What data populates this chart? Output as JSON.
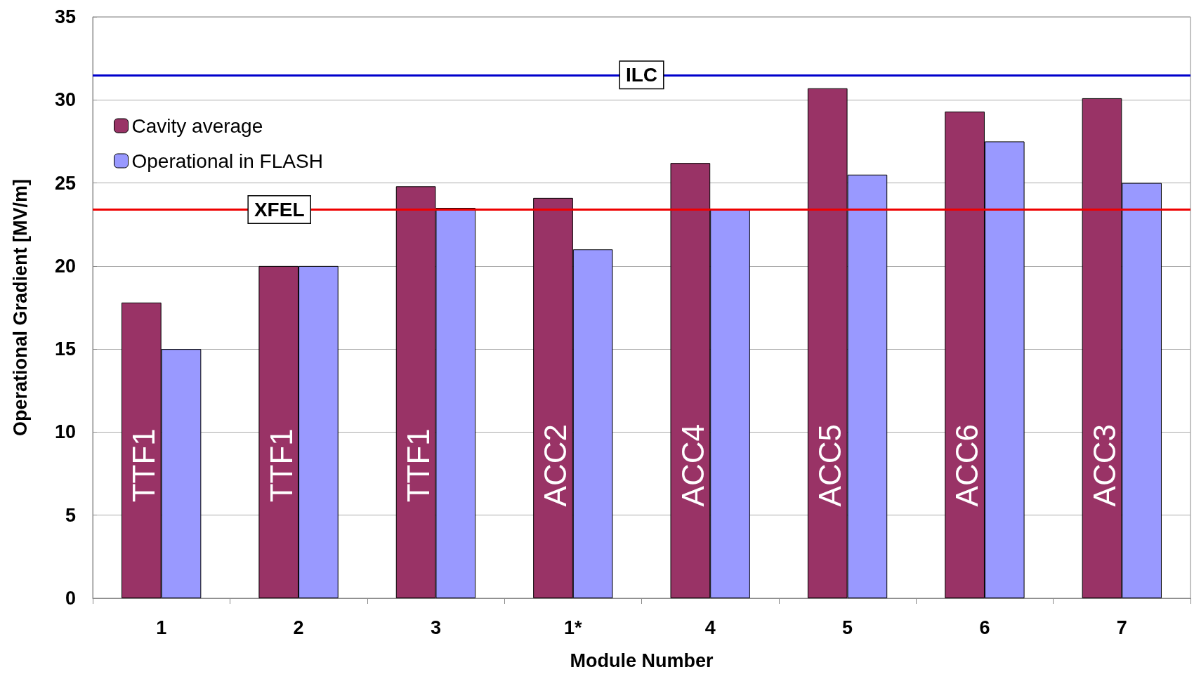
{
  "chart_data": {
    "type": "bar",
    "xlabel": "Module Number",
    "ylabel": "Operational Gradient [MV/m]",
    "categories": [
      "1",
      "2",
      "3",
      "1*",
      "4",
      "5",
      "6",
      "7"
    ],
    "series": [
      {
        "name": "Cavity average",
        "color": "#993366",
        "values": [
          17.8,
          20.0,
          24.8,
          24.1,
          26.2,
          30.7,
          29.3,
          30.1
        ]
      },
      {
        "name": "Operational in FLASH",
        "color": "#9999ff",
        "values": [
          15.0,
          20.0,
          23.5,
          21.0,
          23.4,
          25.5,
          27.5,
          25.0
        ]
      }
    ],
    "ylim": [
      0,
      35
    ],
    "yticks": [
      0,
      5,
      10,
      15,
      20,
      25,
      30,
      35
    ],
    "grid": "y",
    "legend": "top left",
    "ref_lines": [
      {
        "axis": "y",
        "value": 31.5,
        "label": "ILC",
        "color": "#0000cc"
      },
      {
        "axis": "y",
        "value": 23.4,
        "label": "XFEL",
        "color": "#ee0000"
      }
    ],
    "annotations": [
      {
        "text": "TTF1",
        "x": "1",
        "y": 8
      },
      {
        "text": "TTF1",
        "x": "2",
        "y": 8
      },
      {
        "text": "TTF1",
        "x": "3",
        "y": 8
      },
      {
        "text": "ACC2",
        "x": "1*",
        "y": 8
      },
      {
        "text": "ACC4",
        "x": "4",
        "y": 8
      },
      {
        "text": "ACC5",
        "x": "5",
        "y": 8
      },
      {
        "text": "ACC6",
        "x": "6",
        "y": 8
      },
      {
        "text": "ACC3",
        "x": "7",
        "y": 8
      }
    ]
  }
}
